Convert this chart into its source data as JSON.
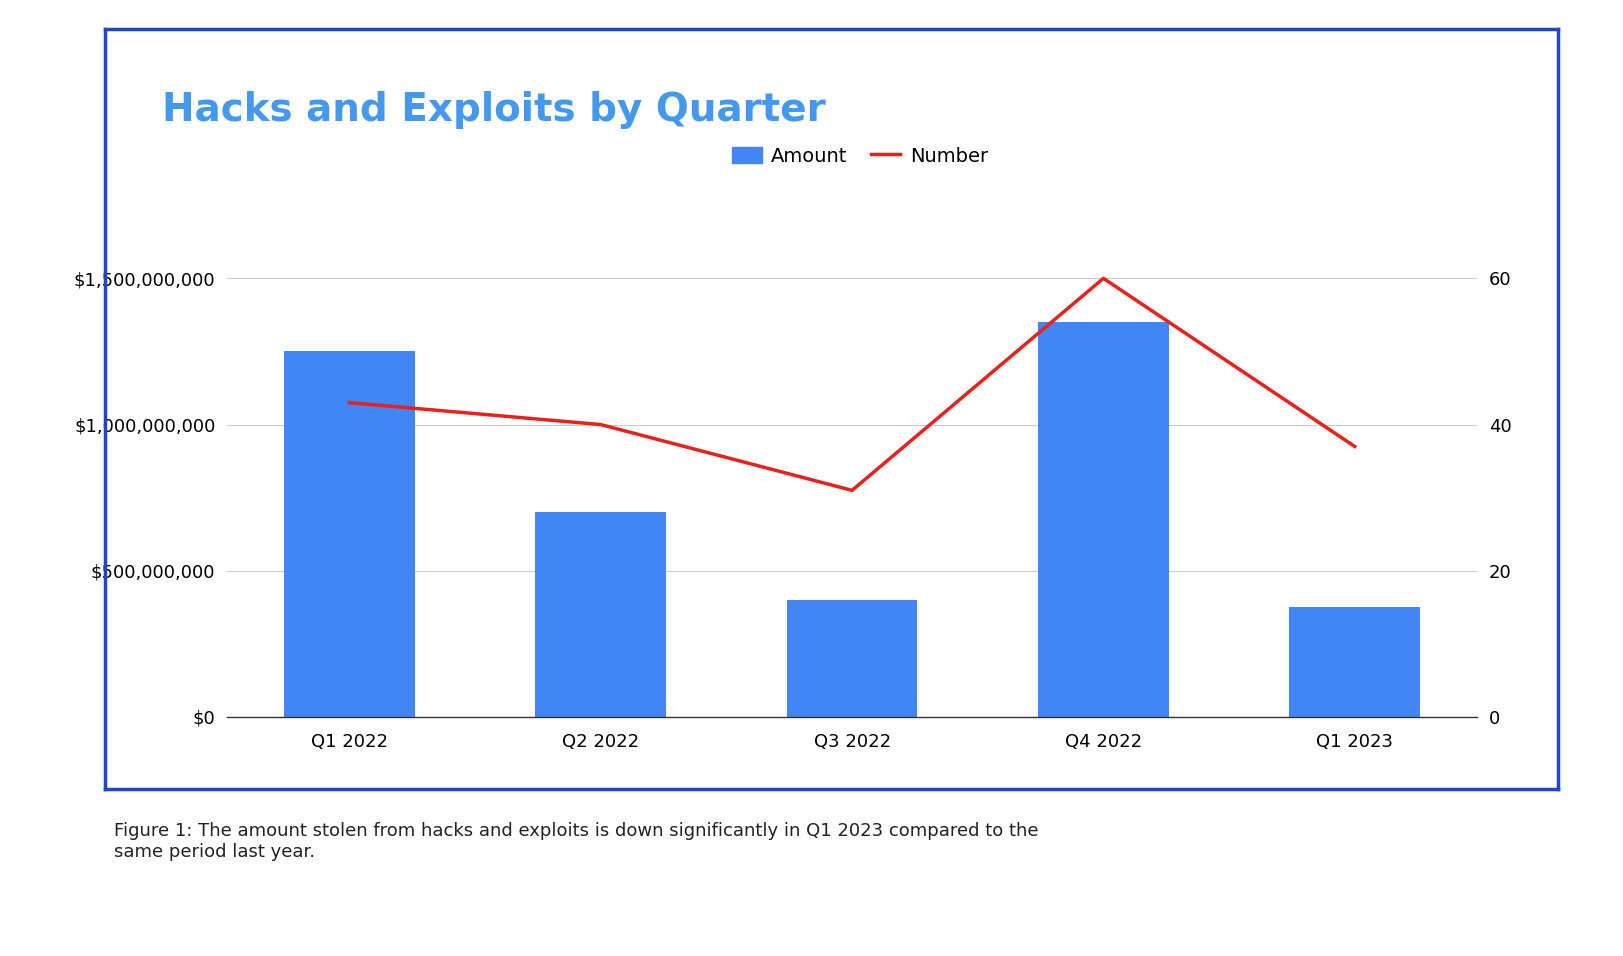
{
  "categories": [
    "Q1 2022",
    "Q2 2022",
    "Q3 2022",
    "Q4 2022",
    "Q1 2023"
  ],
  "bar_values": [
    1250000000,
    700000000,
    400000000,
    1350000000,
    375000000
  ],
  "line_values": [
    43,
    40,
    31,
    60,
    37
  ],
  "bar_color": "#4285F4",
  "line_color": "#E8211D",
  "title": "Hacks and Exploits by Quarter",
  "title_color": "#4499EE",
  "legend_amount_label": "Amount",
  "legend_number_label": "Number",
  "ylim_left": [
    0,
    1700000000
  ],
  "ylim_right": [
    0,
    68
  ],
  "yticks_left": [
    0,
    500000000,
    1000000000,
    1500000000
  ],
  "yticks_right": [
    0,
    20,
    40,
    60
  ],
  "background_color": "#ffffff",
  "border_color": "#2244CC",
  "caption": "Figure 1: The amount stolen from hacks and exploits is down significantly in Q1 2023 compared to the\nsame period last year.",
  "caption_color": "#222222",
  "caption_fontsize": 13,
  "title_fontsize": 28,
  "tick_fontsize": 13,
  "legend_fontsize": 14,
  "bar_width": 0.52
}
